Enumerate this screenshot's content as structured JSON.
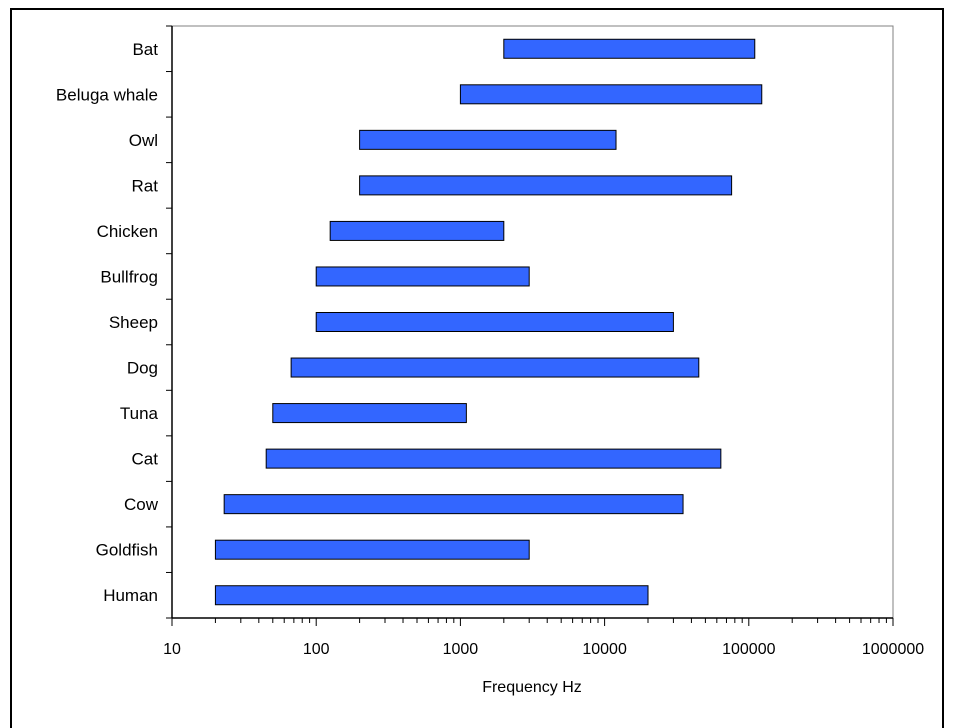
{
  "chart_data": {
    "type": "bar",
    "orientation": "horizontal-range",
    "xscale": "log",
    "xlim": [
      10,
      1000000
    ],
    "xticks": [
      "10",
      "100",
      "1000",
      "10000",
      "100000",
      "1000000"
    ],
    "xlabel": "Frequency  Hz",
    "ylabel": "",
    "title": "",
    "grid": false,
    "legend": "none",
    "bar_color": "#3366ff",
    "categories": [
      "Bat",
      "Beluga whale",
      "Owl",
      "Rat",
      "Chicken",
      "Bullfrog",
      "Sheep",
      "Dog",
      "Tuna",
      "Cat",
      "Cow",
      "Goldfish",
      "Human"
    ],
    "ranges": [
      [
        2000,
        110000
      ],
      [
        1000,
        123000
      ],
      [
        200,
        12000
      ],
      [
        200,
        76000
      ],
      [
        125,
        2000
      ],
      [
        100,
        3000
      ],
      [
        100,
        30000
      ],
      [
        67,
        45000
      ],
      [
        50,
        1100
      ],
      [
        45,
        64000
      ],
      [
        23,
        35000
      ],
      [
        20,
        3000
      ],
      [
        20,
        20000
      ]
    ]
  }
}
